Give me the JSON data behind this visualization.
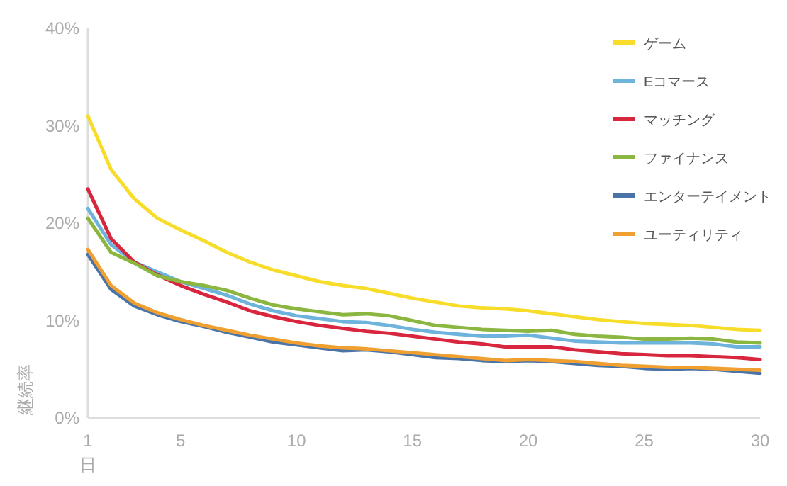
{
  "chart_data": {
    "type": "line",
    "xlabel": "日",
    "ylabel": "継続率",
    "x": [
      1,
      2,
      3,
      4,
      5,
      6,
      7,
      8,
      9,
      10,
      11,
      12,
      13,
      14,
      15,
      16,
      17,
      18,
      19,
      20,
      21,
      22,
      23,
      24,
      25,
      26,
      27,
      28,
      29,
      30
    ],
    "xlim": [
      1,
      30
    ],
    "xticks": [
      1,
      5,
      10,
      15,
      20,
      25,
      30
    ],
    "ylim": [
      0,
      40
    ],
    "yticks": [
      {
        "value": 0,
        "label": "0%"
      },
      {
        "value": 10,
        "label": "10%"
      },
      {
        "value": 20,
        "label": "20%"
      },
      {
        "value": 30,
        "label": "30%"
      },
      {
        "value": 40,
        "label": "40%"
      }
    ],
    "legend": "top right",
    "marker": "none",
    "series": [
      {
        "name": "ゲーム",
        "color": "#f7dc2a",
        "values": [
          31,
          25.5,
          22.5,
          20.5,
          19.3,
          18.2,
          17,
          16,
          15.2,
          14.6,
          14,
          13.6,
          13.3,
          12.8,
          12.3,
          11.9,
          11.5,
          11.3,
          11.2,
          11,
          10.7,
          10.4,
          10.1,
          9.9,
          9.7,
          9.6,
          9.5,
          9.3,
          9.1,
          9.0
        ]
      },
      {
        "name": "Eコマース",
        "color": "#6db3dc",
        "values": [
          21.5,
          17.8,
          16,
          15,
          14,
          13.3,
          12.6,
          11.7,
          11,
          10.5,
          10.2,
          9.9,
          9.8,
          9.5,
          9.1,
          8.8,
          8.6,
          8.4,
          8.4,
          8.5,
          8.2,
          7.9,
          7.8,
          7.7,
          7.7,
          7.7,
          7.7,
          7.6,
          7.3,
          7.3
        ]
      },
      {
        "name": "マッチング",
        "color": "#d7263d",
        "values": [
          23.5,
          18.4,
          16,
          14.7,
          13.6,
          12.7,
          11.9,
          11,
          10.4,
          9.9,
          9.5,
          9.2,
          8.9,
          8.7,
          8.4,
          8.1,
          7.8,
          7.6,
          7.3,
          7.3,
          7.3,
          7.0,
          6.8,
          6.6,
          6.5,
          6.4,
          6.4,
          6.3,
          6.2,
          6.0
        ]
      },
      {
        "name": "ファイナンス",
        "color": "#8bb63f",
        "values": [
          20.5,
          17,
          15.9,
          14.6,
          14,
          13.6,
          13.1,
          12.3,
          11.6,
          11.2,
          10.9,
          10.6,
          10.7,
          10.5,
          10,
          9.5,
          9.3,
          9.1,
          9.0,
          8.9,
          9.0,
          8.6,
          8.4,
          8.3,
          8.1,
          8.1,
          8.2,
          8.1,
          7.8,
          7.7
        ]
      },
      {
        "name": "エンターテイメント",
        "color": "#4a74a8",
        "values": [
          16.8,
          13.2,
          11.5,
          10.6,
          9.9,
          9.4,
          8.8,
          8.3,
          7.8,
          7.5,
          7.2,
          6.9,
          7.0,
          6.8,
          6.5,
          6.2,
          6.1,
          5.9,
          5.8,
          5.9,
          5.8,
          5.6,
          5.4,
          5.3,
          5.1,
          5.0,
          5.1,
          5.0,
          4.8,
          4.6
        ]
      },
      {
        "name": "ユーティリティ",
        "color": "#f0a030",
        "values": [
          17.3,
          13.6,
          11.8,
          10.8,
          10.1,
          9.5,
          9.0,
          8.5,
          8.1,
          7.7,
          7.4,
          7.2,
          7.1,
          6.9,
          6.7,
          6.5,
          6.3,
          6.1,
          5.9,
          6.0,
          5.9,
          5.8,
          5.6,
          5.4,
          5.3,
          5.2,
          5.2,
          5.1,
          5.0,
          4.9
        ]
      }
    ]
  }
}
